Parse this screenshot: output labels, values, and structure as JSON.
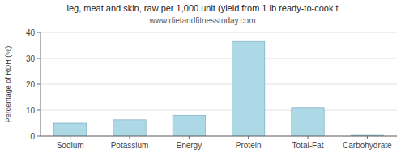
{
  "chart_data": {
    "type": "bar",
    "title": "leg, meat and skin, raw per 1,000 unit (yield from 1 lb ready-to-cook t",
    "subtitle": "www.dietandfitnesstoday.com",
    "categories": [
      "Sodium",
      "Potassium",
      "Energy",
      "Protein",
      "Total-Fat",
      "Carbohydrate"
    ],
    "values": [
      5.0,
      6.3,
      8.0,
      36.5,
      11.0,
      0.3
    ],
    "color": "#add8e6",
    "ylabel": "Percentage of RDH (%)",
    "ylim": [
      0,
      40
    ],
    "yticks": [
      0,
      10,
      20,
      30,
      40
    ],
    "grid": true
  }
}
